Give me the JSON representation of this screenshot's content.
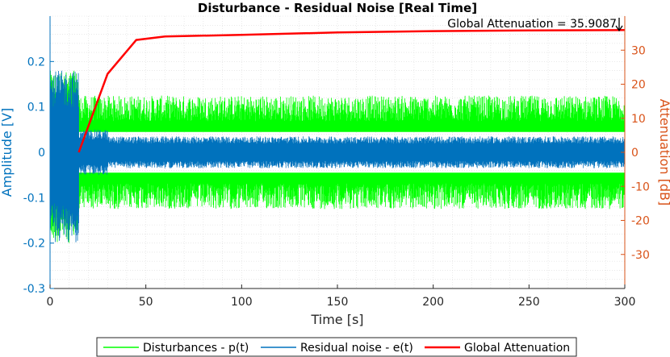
{
  "colors": {
    "disturbance": "#00ff00",
    "residual": "#0072bd",
    "attenuation": "#ff0000",
    "left_axis": "#0072bd",
    "right_axis": "#d95319"
  },
  "chart_data": {
    "type": "line",
    "title": "Disturbance - Residual Noise [Real Time]",
    "xlabel": "Time [s]",
    "ylabel_left": "Amplitude [V]",
    "ylabel_right": "Attenuation [dB]",
    "xlim": [
      0,
      300
    ],
    "ylim_left": [
      -0.3,
      0.3
    ],
    "ylim_right": [
      -40,
      40
    ],
    "xticks": [
      0,
      50,
      100,
      150,
      200,
      250,
      300
    ],
    "yticks_left": [
      -0.3,
      -0.2,
      -0.1,
      0,
      0.1,
      0.2
    ],
    "yticks_right": [
      -30,
      -20,
      -10,
      0,
      10,
      20,
      30
    ],
    "xtick_labels": [
      "0",
      "50",
      "100",
      "150",
      "200",
      "250",
      "300"
    ],
    "ytick_labels_left": [
      "-0.3",
      "-0.2",
      "-0.1",
      "0",
      "0.1",
      "0.2"
    ],
    "ytick_labels_right": [
      "-30",
      "-20",
      "-10",
      "0",
      "10",
      "20",
      "30"
    ],
    "grid": "minor dotted",
    "legend_position": "bottom",
    "series": [
      {
        "name": "Disturbances - p(t)",
        "axis": "left",
        "style": "noise band",
        "segments": [
          {
            "x_range": [
              0,
              15
            ],
            "y_range": [
              -0.2,
              0.18
            ]
          },
          {
            "x_range": [
              15,
              300
            ],
            "y_range": [
              -0.125,
              0.125
            ],
            "gap_range": [
              -0.045,
              0.045
            ]
          }
        ]
      },
      {
        "name": "Residual noise - e(t)",
        "axis": "left",
        "style": "noise band",
        "segments": [
          {
            "x_range": [
              0,
              15
            ],
            "y_range": [
              -0.2,
              0.18
            ]
          },
          {
            "x_range": [
              15,
              30
            ],
            "y_range": [
              -0.05,
              0.05
            ]
          },
          {
            "x_range": [
              30,
              300
            ],
            "y_range": [
              -0.035,
              0.035
            ]
          }
        ]
      },
      {
        "name": "Global Attenuation",
        "axis": "right",
        "x": [
          15,
          30,
          45,
          60,
          100,
          150,
          200,
          250,
          300
        ],
        "y": [
          0,
          23,
          33,
          34,
          34.5,
          35.2,
          35.6,
          35.8,
          35.9
        ]
      }
    ],
    "annotation": "Global Attenuation = 35.9087"
  }
}
